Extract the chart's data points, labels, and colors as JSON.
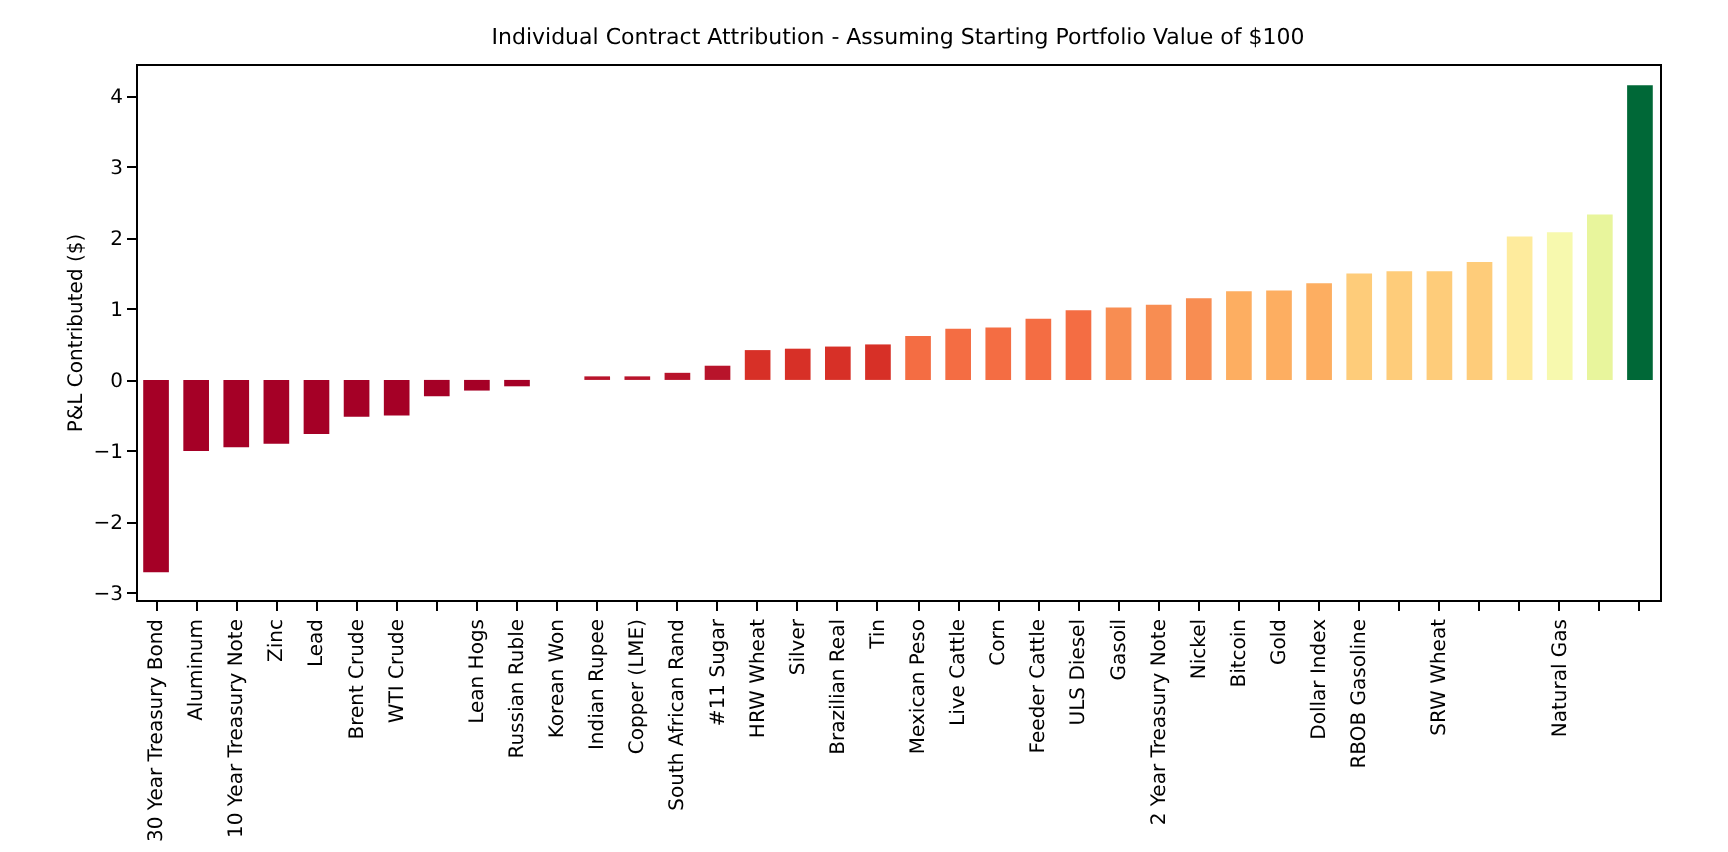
{
  "chart_data": {
    "type": "bar",
    "title": "Individual Contract Attribution - Assuming Starting Portfolio Value of $100",
    "ylabel": "P&L Contributed ($)",
    "categories": [
      "30 Year Treasury Bond",
      "Aluminum",
      "10 Year Treasury Note",
      "Zinc",
      "Lead",
      "Brent Crude",
      "WTI Crude",
      null,
      "Lean Hogs",
      "Russian Ruble",
      "Korean Won",
      "Indian Rupee",
      "Copper (LME)",
      "South African Rand",
      "#11 Sugar",
      "HRW Wheat",
      "Silver",
      "Brazilian Real",
      "Tin",
      "Mexican Peso",
      "Live Cattle",
      "Corn",
      "Feeder Cattle",
      "ULS Diesel",
      "Gasoil",
      "2 Year Treasury Note",
      "Nickel",
      "Bitcoin",
      "Gold",
      "Dollar Index",
      "RBOB Gasoline",
      null,
      "SRW Wheat",
      null,
      null,
      "Natural Gas",
      null,
      null
    ],
    "values": [
      -2.71,
      -1.0,
      -0.95,
      -0.9,
      -0.76,
      -0.52,
      -0.5,
      -0.23,
      -0.15,
      -0.09,
      0,
      0.05,
      0.05,
      0.1,
      0.2,
      0.42,
      0.44,
      0.47,
      0.5,
      0.62,
      0.72,
      0.74,
      0.86,
      0.98,
      1.02,
      1.06,
      1.15,
      1.25,
      1.26,
      1.36,
      1.5,
      1.53,
      1.53,
      1.66,
      2.02,
      2.08,
      2.33,
      4.15
    ],
    "colors": [
      "#a50026",
      "#a50026",
      "#a50026",
      "#a50026",
      "#a50026",
      "#a50026",
      "#a50026",
      "#a50026",
      "#a50026",
      "#a50026",
      "#a50026",
      "#b8142b",
      "#b8142b",
      "#b8142b",
      "#b8142b",
      "#d73027",
      "#d73027",
      "#d73027",
      "#d73027",
      "#f46d43",
      "#f46d43",
      "#f46d43",
      "#f46d43",
      "#f46d43",
      "#f88d52",
      "#f88d52",
      "#f88d52",
      "#fdae61",
      "#fdae61",
      "#fdae61",
      "#fecc7a",
      "#fecc7a",
      "#fecc7a",
      "#fecc7a",
      "#feeb9d",
      "#f7f9ae",
      "#e8f59c",
      "#006837"
    ],
    "ylim": [
      -3.1,
      4.45
    ],
    "yticks": [
      -3,
      -2,
      -1,
      0,
      1,
      2,
      3,
      4
    ]
  }
}
